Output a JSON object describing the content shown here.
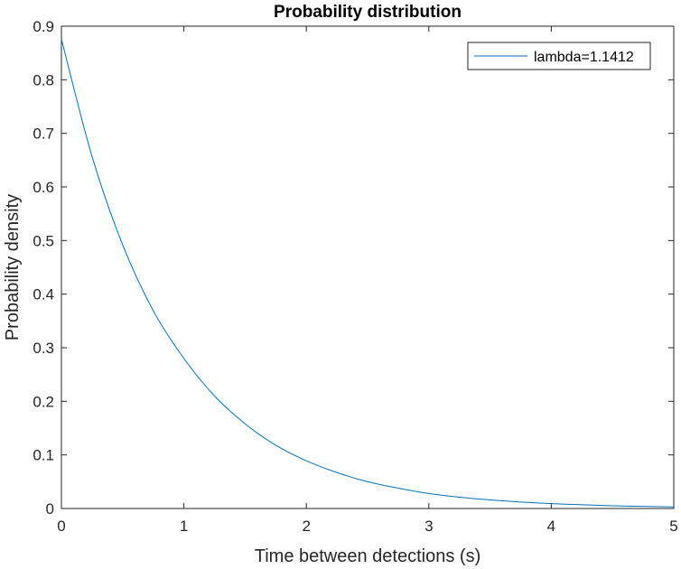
{
  "chart_data": {
    "type": "line",
    "title": "Probability distribution",
    "xlabel": "Time between detections (s)",
    "ylabel": "Probability density",
    "xlim": [
      0,
      5
    ],
    "ylim": [
      0,
      0.9
    ],
    "xticks": [
      "0",
      "1",
      "2",
      "3",
      "4",
      "5"
    ],
    "yticks": [
      "0",
      "0.1",
      "0.2",
      "0.3",
      "0.4",
      "0.5",
      "0.6",
      "0.7",
      "0.8",
      "0.9"
    ],
    "grid": false,
    "legend_position": "top-right",
    "series": [
      {
        "name": "lambda=1.1412",
        "color": "#0072BD",
        "x": [
          0,
          0.25,
          0.5,
          0.75,
          1,
          1.25,
          1.5,
          1.75,
          2,
          2.25,
          2.5,
          2.75,
          3,
          3.25,
          3.5,
          3.75,
          4,
          4.25,
          4.5,
          4.75,
          5
        ],
        "y": [
          0.876,
          0.657,
          0.492,
          0.369,
          0.28,
          0.21,
          0.158,
          0.118,
          0.089,
          0.067,
          0.05,
          0.038,
          0.028,
          0.021,
          0.016,
          0.012,
          0.009,
          0.007,
          0.005,
          0.004,
          0.003
        ]
      }
    ]
  }
}
